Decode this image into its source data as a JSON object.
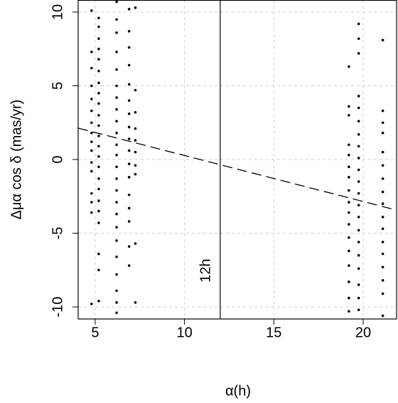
{
  "chart_data": {
    "type": "scatter",
    "x_label": "α(h)",
    "y_label": "Δμα cos δ (mas/yr)",
    "annotation": "12h",
    "xlim": [
      4.05,
      21.87
    ],
    "ylim": [
      -10.82,
      10.82
    ],
    "xticks": [
      5,
      10,
      15,
      20
    ],
    "yticks": [
      -10,
      -5,
      0,
      5,
      10
    ],
    "grid": true,
    "color": "#000000",
    "vline": 12,
    "fit": {
      "intercept": 3.39,
      "slope": -0.312
    },
    "columns": [
      {
        "x": 4.8,
        "y": [
          10.1,
          7.3,
          6.2,
          5.0,
          4.1,
          3.3,
          2.5,
          1.8,
          1.2,
          0.6,
          -0.2,
          -0.8,
          -2.3,
          -2.9,
          -3.6,
          -9.8
        ]
      },
      {
        "x": 5.2,
        "y": [
          9.6,
          9.0,
          8.2,
          7.5,
          6.8,
          6.0,
          5.2,
          4.5,
          3.8,
          3.0,
          2.3,
          1.6,
          0.9,
          0.2,
          -0.5,
          -1.3,
          -2.0,
          -2.8,
          -3.5,
          -4.3,
          -6.4,
          -7.5,
          -9.6
        ]
      },
      {
        "x": 6.2,
        "y": [
          10.7,
          9.5,
          8.6,
          7.3,
          6.1,
          5.0,
          4.2,
          3.4,
          2.6,
          1.8,
          1.0,
          0.3,
          -0.5,
          -1.3,
          -2.1,
          -2.9,
          -3.7,
          -4.6,
          -5.5,
          -6.6,
          -7.8,
          -8.9,
          -9.7,
          -10.4
        ]
      },
      {
        "x": 6.9,
        "y": [
          10.2,
          8.7,
          7.6,
          6.4,
          5.1,
          4.0,
          3.1,
          2.2,
          1.4,
          0.6,
          -0.3,
          -1.2,
          -2.4,
          -3.3,
          -4.2,
          -5.9,
          -7.2
        ]
      },
      {
        "x": 7.25,
        "y": [
          10.3,
          4.7,
          3.2,
          2.1,
          1.3,
          0.5,
          -0.4,
          -1.0,
          -5.7,
          -9.7
        ]
      },
      {
        "x": 19.2,
        "y": [
          6.3,
          3.6,
          3.0,
          1.0,
          0.3,
          -0.5,
          -1.2,
          -2.1,
          -2.9,
          -3.6,
          -4.4,
          -5.3,
          -6.2,
          -7.2,
          -8.3,
          -9.4,
          -10.3
        ]
      },
      {
        "x": 19.75,
        "y": [
          9.2,
          8.2,
          7.2,
          4.3,
          3.5,
          2.6,
          1.7,
          0.9,
          0.1,
          -0.7,
          -1.5,
          -2.3,
          -3.1,
          -3.9,
          -4.8,
          -5.6,
          -6.5,
          -7.4,
          -8.5,
          -9.4,
          -10.2
        ]
      },
      {
        "x": 21.1,
        "y": [
          8.1,
          3.3,
          2.5,
          1.8,
          0.5,
          -0.4,
          -1.3,
          -2.2,
          -3.0,
          -3.9,
          -4.7,
          -5.6,
          -6.4,
          -7.3,
          -8.2,
          -9.1,
          -10.6
        ]
      }
    ]
  }
}
